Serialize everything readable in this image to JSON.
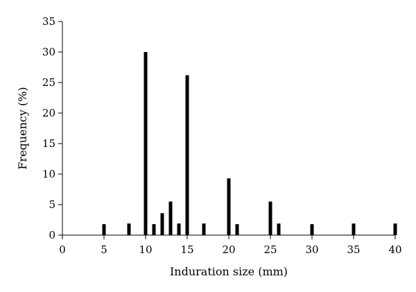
{
  "chart_data": {
    "type": "bar",
    "xlabel": "Induration size (mm)",
    "ylabel": "Frequency (%)",
    "xlim": [
      0,
      40
    ],
    "ylim": [
      0,
      35
    ],
    "x_ticks": [
      0,
      5,
      10,
      15,
      20,
      25,
      30,
      35,
      40
    ],
    "y_ticks": [
      0,
      5,
      10,
      15,
      20,
      25,
      30,
      35
    ],
    "grid": false,
    "bar_color": "#000000",
    "series": [
      {
        "x": [
          5,
          8,
          10,
          11,
          12,
          13,
          14,
          15,
          17,
          20,
          21,
          25,
          26,
          30,
          35,
          40
        ],
        "values": [
          1.8,
          1.9,
          30.0,
          1.8,
          3.6,
          5.5,
          1.9,
          26.2,
          1.9,
          9.3,
          1.8,
          5.5,
          1.9,
          1.8,
          1.9,
          1.9
        ]
      }
    ]
  }
}
